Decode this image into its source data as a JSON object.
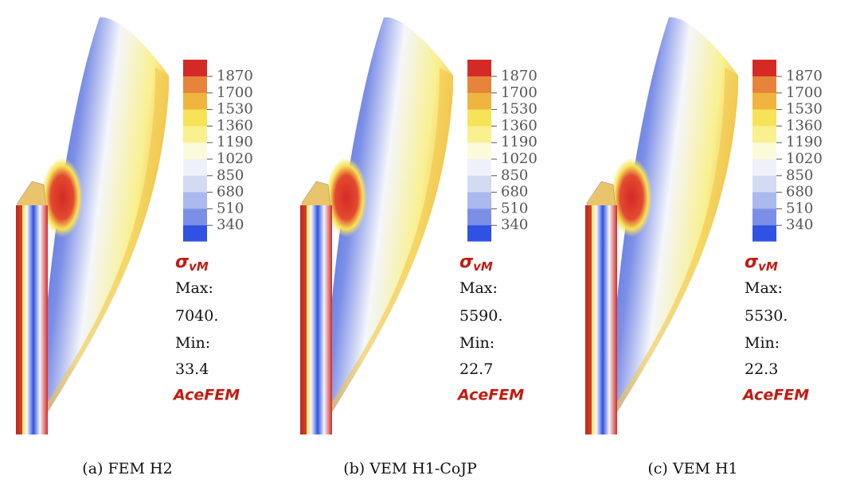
{
  "colorbar_colors": [
    "#d42a26",
    "#e5843a",
    "#efb540",
    "#f6e357",
    "#f9f08f",
    "#fbfbdc",
    "#eef1f9",
    "#d3dbf3",
    "#abb9ee",
    "#7c8fe7",
    "#2f52e2"
  ],
  "panels": [
    {
      "caption": "(a) FEM H2",
      "colorbar_ticks": [
        "1870",
        "1700",
        "1530",
        "1360",
        "1190",
        "1020",
        "850",
        "680",
        "510",
        "340"
      ],
      "quantity_symbol": "σ",
      "quantity_subscript": "vM",
      "max_label": "Max:",
      "max_value": "7040.",
      "min_label": "Min:",
      "min_value": "33.4",
      "software": "AceFEM"
    },
    {
      "caption": "(b) VEM H1-CoJP",
      "colorbar_ticks": [
        "1870",
        "1700",
        "1530",
        "1360",
        "1190",
        "1020",
        "850",
        "680",
        "510",
        "340"
      ],
      "quantity_symbol": "σ",
      "quantity_subscript": "vM",
      "max_label": "Max:",
      "max_value": "5590.",
      "min_label": "Min:",
      "min_value": "22.7",
      "software": "AceFEM"
    },
    {
      "caption": "(c) VEM H1",
      "colorbar_ticks": [
        "1870",
        "1700",
        "1530",
        "1360",
        "1190",
        "1020",
        "850",
        "680",
        "510",
        "340"
      ],
      "quantity_symbol": "σ",
      "quantity_subscript": "vM",
      "max_label": "Max:",
      "max_value": "5530.",
      "min_label": "Min:",
      "min_value": "22.3",
      "software": "AceFEM"
    }
  ]
}
